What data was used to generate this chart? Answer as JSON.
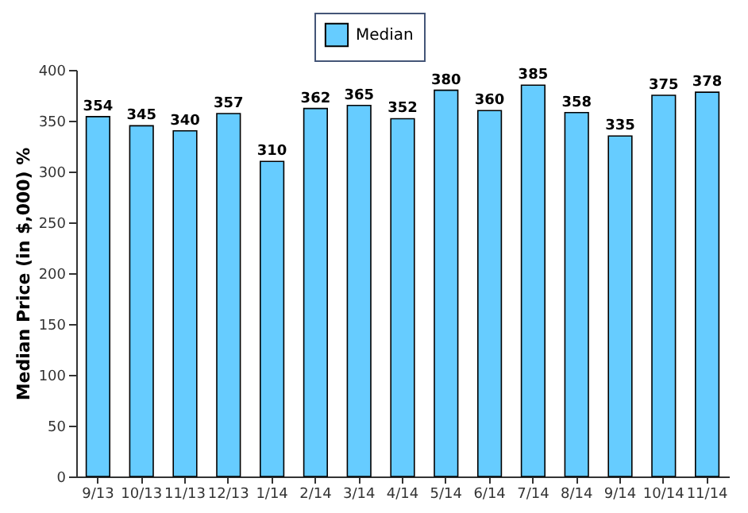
{
  "chart_data": {
    "type": "bar",
    "ylabel": "Median Price (in $,000) %",
    "categories": [
      "9/13",
      "10/13",
      "11/13",
      "12/13",
      "1/14",
      "2/14",
      "3/14",
      "4/14",
      "5/14",
      "6/14",
      "7/14",
      "8/14",
      "9/14",
      "10/14",
      "11/14"
    ],
    "series": [
      {
        "name": "Median",
        "color": "#66ccff",
        "values": [
          354,
          345,
          340,
          357,
          310,
          362,
          365,
          352,
          380,
          360,
          385,
          358,
          335,
          375,
          378
        ]
      }
    ],
    "ylim": [
      0,
      400
    ],
    "yticks": [
      0,
      50,
      100,
      150,
      200,
      250,
      300,
      350,
      400
    ],
    "grid": false,
    "legend": "top",
    "data_labels": true
  }
}
